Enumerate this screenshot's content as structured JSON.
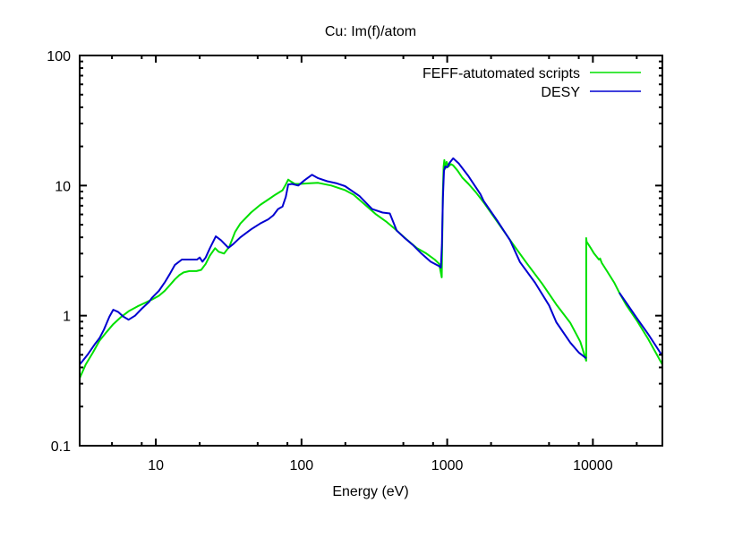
{
  "chart_data": {
    "type": "line",
    "title": "Cu: Im(f)/atom",
    "xlabel": "Energy (eV)",
    "ylabel": "",
    "xscale": "log",
    "yscale": "log",
    "xlim": [
      3,
      30000
    ],
    "ylim": [
      0.1,
      100
    ],
    "x_ticks": [
      {
        "value": 10,
        "label": "10"
      },
      {
        "value": 100,
        "label": "100"
      },
      {
        "value": 1000,
        "label": "1000"
      },
      {
        "value": 10000,
        "label": "10000"
      }
    ],
    "y_ticks": [
      {
        "value": 0.1,
        "label": "0.1"
      },
      {
        "value": 1,
        "label": "1"
      },
      {
        "value": 10,
        "label": "10"
      },
      {
        "value": 100,
        "label": "100"
      }
    ],
    "grid": false,
    "legend": {
      "position": "top-right"
    },
    "series": [
      {
        "name": "FEFF-atutomated scripts",
        "color": "#00e000",
        "x": [
          3,
          3.3,
          3.7,
          4.1,
          4.6,
          5.1,
          5.8,
          6.5,
          7.5,
          8.5,
          9.4,
          10.5,
          11.5,
          12.5,
          13.5,
          14.5,
          15.5,
          17,
          19,
          20.5,
          22,
          23.5,
          25.5,
          27,
          29.4,
          32,
          35,
          38,
          45,
          52,
          59,
          66,
          74,
          78,
          81,
          84,
          90,
          98,
          110,
          130,
          160,
          200,
          228,
          270,
          325,
          380,
          432,
          520,
          620,
          720,
          820,
          880,
          917,
          925,
          935,
          945,
          956,
          970,
          990,
          1020,
          1060,
          1100,
          1180,
          1270,
          1400,
          1570,
          1800,
          2200,
          2800,
          3500,
          4500,
          5600,
          7000,
          8200,
          9000,
          9000,
          9050,
          9200,
          9600,
          10200,
          11000,
          11200,
          11500,
          12500,
          14000,
          15200,
          17000,
          20000,
          24000,
          30000
        ],
        "y": [
          0.33,
          0.42,
          0.52,
          0.64,
          0.75,
          0.86,
          0.98,
          1.08,
          1.18,
          1.26,
          1.33,
          1.42,
          1.55,
          1.72,
          1.9,
          2.05,
          2.15,
          2.2,
          2.2,
          2.25,
          2.5,
          2.9,
          3.3,
          3.1,
          3.0,
          3.4,
          4.4,
          5.1,
          6.2,
          7.1,
          7.8,
          8.5,
          9.2,
          10.2,
          11.1,
          10.8,
          10.3,
          10.3,
          10.4,
          10.5,
          10.0,
          9.2,
          8.5,
          7.2,
          6.0,
          5.3,
          4.7,
          3.9,
          3.3,
          3.0,
          2.7,
          2.5,
          1.97,
          4.0,
          9.0,
          14.0,
          15.7,
          13.5,
          15.2,
          14.0,
          14.6,
          14.3,
          13.0,
          11.5,
          10.3,
          8.9,
          7.3,
          5.3,
          3.6,
          2.55,
          1.75,
          1.22,
          0.88,
          0.63,
          0.45,
          3.95,
          3.7,
          3.6,
          3.35,
          3.0,
          2.7,
          2.75,
          2.55,
          2.2,
          1.8,
          1.5,
          1.2,
          0.92,
          0.66,
          0.42
        ]
      },
      {
        "name": "DESY",
        "color": "#0000d0",
        "x": [
          3,
          3.4,
          3.8,
          4.1,
          4.4,
          4.8,
          5.1,
          5.5,
          6.0,
          6.5,
          7.2,
          8.0,
          9.0,
          9.4,
          10.5,
          11.5,
          12.5,
          13.5,
          15.1,
          17,
          19.2,
          20,
          20.9,
          22,
          23.5,
          25.8,
          28,
          31.5,
          34,
          38,
          45,
          52,
          59,
          64,
          69,
          74,
          78,
          81,
          86,
          95,
          105,
          118,
          130,
          150,
          175,
          199,
          250,
          305,
          360,
          404,
          450,
          505,
          580,
          665,
          770,
          880,
          905,
          920,
          935,
          950,
          970,
          1000,
          1040,
          1100,
          1200,
          1400,
          1690,
          1780,
          2200,
          2700,
          3160,
          4000,
          5000,
          5610,
          7000,
          8000,
          9000
        ],
        "y": [
          0.42,
          0.5,
          0.6,
          0.67,
          0.78,
          0.98,
          1.11,
          1.07,
          0.98,
          0.93,
          1.0,
          1.13,
          1.28,
          1.37,
          1.55,
          1.8,
          2.1,
          2.45,
          2.7,
          2.7,
          2.7,
          2.8,
          2.6,
          2.8,
          3.3,
          4.07,
          3.8,
          3.32,
          3.55,
          4.0,
          4.6,
          5.1,
          5.5,
          5.9,
          6.6,
          6.9,
          8.2,
          10.2,
          10.3,
          10.0,
          11.0,
          12.1,
          11.4,
          10.8,
          10.4,
          9.9,
          8.3,
          6.6,
          6.2,
          6.1,
          4.5,
          4.0,
          3.5,
          3.0,
          2.6,
          2.4,
          2.34,
          3.5,
          8.0,
          13.0,
          14.0,
          13.8,
          15.0,
          16.2,
          14.8,
          11.8,
          8.6,
          7.6,
          5.4,
          3.8,
          2.58,
          1.8,
          1.2,
          0.89,
          0.62,
          0.52,
          0.47
        ],
        "x2": [
          15200,
          17000,
          20000,
          24000,
          30000
        ],
        "y2": [
          1.5,
          1.25,
          0.96,
          0.72,
          0.49
        ]
      }
    ]
  }
}
